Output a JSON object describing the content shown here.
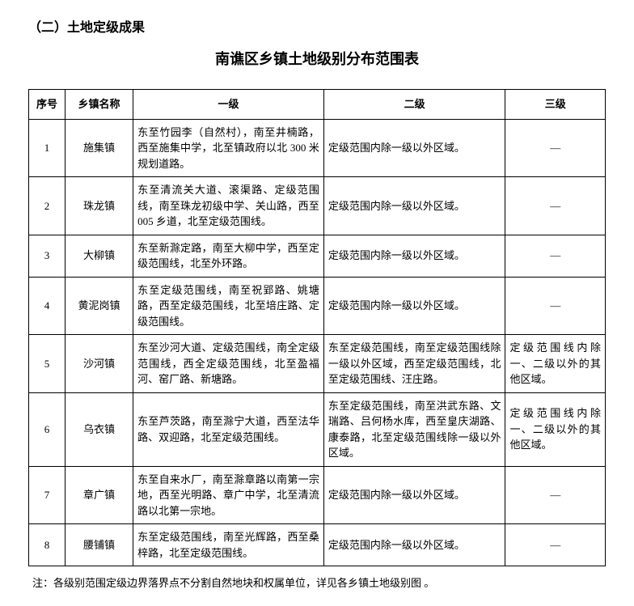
{
  "section_title": "（二）土地定级成果",
  "table_title": "南谯区乡镇土地级别分布范围表",
  "columns": {
    "num": "序号",
    "name": "乡镇名称",
    "l1": "一级",
    "l2": "二级",
    "l3": "三级"
  },
  "rows": [
    {
      "num": "1",
      "name": "施集镇",
      "l1": "东至竹园李（自然村），南至井楠路，西至施集中学，北至镇政府以北 300 米规划道路。",
      "l2": "定级范围内除一级以外区域。",
      "l3": "—"
    },
    {
      "num": "2",
      "name": "珠龙镇",
      "l1": "东至清流关大道、滚渠路、定级范围线，南至珠龙初级中学、关山路，西至 005 乡道，北至定级范围线。",
      "l2": "定级范围内除一级以外区域。",
      "l3": "—"
    },
    {
      "num": "3",
      "name": "大柳镇",
      "l1": "东至新滁定路，南至大柳中学，西至定级范围线，北至外环路。",
      "l2": "定级范围内除一级以外区域。",
      "l3": "—"
    },
    {
      "num": "4",
      "name": "黄泥岗镇",
      "l1": "东至定级范围线，南至祝郢路、姚塘路，西至定级范围线，北至培庄路、定级范围线。",
      "l2": "定级范围内除一级以外区域。",
      "l3": "—"
    },
    {
      "num": "5",
      "name": "沙河镇",
      "l1": "东至沙河大道、定级范围线，南全定级范围线，西全定级范围线，北至盈福河、窑厂路、新塘路。",
      "l2": "东至定级范围线，南至定级范围线除一级以外区域，西至定级范围线，北至定级范围线、汪庄路。",
      "l3": "定级范围线内除一、二级以外的其他区域。"
    },
    {
      "num": "6",
      "name": "乌衣镇",
      "l1": "东至芦茨路，南至滁宁大道，西至法华路、双迎路，北至定级范围线。",
      "l2": "东至定级范围线，南至洪武东路、文瑞路、吕何杨水库，西至皇庆湖路、康泰路，北至定级范围线除一级以外区域。",
      "l3": "定级范围线内除一、二级以外的其他区域。"
    },
    {
      "num": "7",
      "name": "章广镇",
      "l1": "东至自来水厂，南至滁章路以南第一宗地，西至光明路、章广中学，北至清流路以北第一宗地。",
      "l2": "定级范围内除一级以外区域。",
      "l3": "—"
    },
    {
      "num": "8",
      "name": "腰铺镇",
      "l1": "东至定级范围线，南至光辉路，西至桑梓路，北至定级范围线。",
      "l2": "定级范围内除一级以外区域。",
      "l3": "—"
    }
  ],
  "footnote": "注：各级别范围定级边界落界点不分割自然地块和权属单位，详见各乡镇土地级别图 。"
}
